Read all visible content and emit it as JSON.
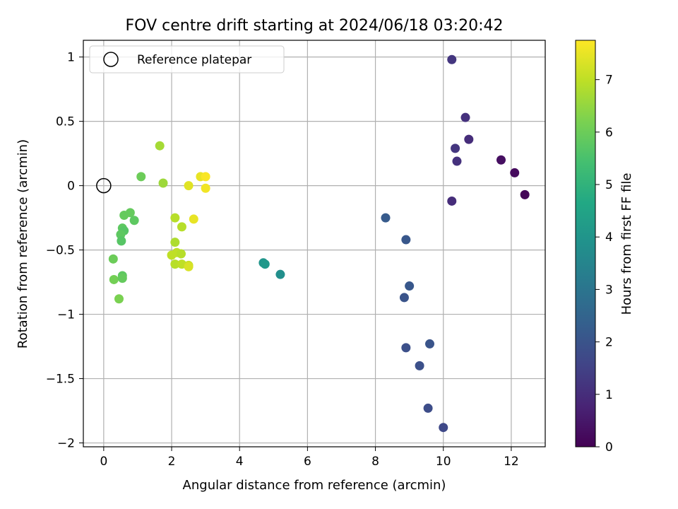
{
  "chart_data": {
    "type": "scatter",
    "title": "FOV centre drift starting at 2024/06/18 03:20:42",
    "xlabel": "Angular distance from reference (arcmin)",
    "ylabel": "Rotation from reference (arcmin)",
    "xlim": [
      -0.6,
      13.0
    ],
    "ylim": [
      -2.03,
      1.13
    ],
    "xticks": [
      0,
      2,
      4,
      6,
      8,
      10,
      12
    ],
    "yticks": [
      1.0,
      0.5,
      0.0,
      -0.5,
      -1.0,
      -1.5,
      -2.0
    ],
    "grid": true,
    "legend": {
      "placement": "top-left",
      "entries": [
        "Reference platepar"
      ]
    },
    "reference_point": {
      "x": 0.0,
      "y": 0.0
    },
    "colorbar": {
      "label": "Hours from first FF file",
      "colormap": "viridis",
      "range": [
        0,
        7.75
      ],
      "ticks": [
        0,
        1,
        2,
        3,
        4,
        5,
        6,
        7
      ]
    },
    "points": [
      {
        "x": 10.25,
        "y": 0.98,
        "c": 1.2
      },
      {
        "x": 10.65,
        "y": 0.53,
        "c": 1.1
      },
      {
        "x": 10.35,
        "y": 0.29,
        "c": 1.2
      },
      {
        "x": 10.75,
        "y": 0.36,
        "c": 1.0
      },
      {
        "x": 10.4,
        "y": 0.19,
        "c": 1.1
      },
      {
        "x": 11.7,
        "y": 0.2,
        "c": 0.3
      },
      {
        "x": 12.1,
        "y": 0.1,
        "c": 0.2
      },
      {
        "x": 12.4,
        "y": -0.07,
        "c": 0.1
      },
      {
        "x": 10.25,
        "y": -0.12,
        "c": 1.0
      },
      {
        "x": 8.3,
        "y": -0.25,
        "c": 2.2
      },
      {
        "x": 8.9,
        "y": -0.42,
        "c": 2.1
      },
      {
        "x": 9.0,
        "y": -0.78,
        "c": 2.1
      },
      {
        "x": 8.85,
        "y": -0.87,
        "c": 2.0
      },
      {
        "x": 8.9,
        "y": -1.26,
        "c": 1.9
      },
      {
        "x": 9.6,
        "y": -1.23,
        "c": 2.0
      },
      {
        "x": 9.3,
        "y": -1.4,
        "c": 1.9
      },
      {
        "x": 9.55,
        "y": -1.73,
        "c": 1.8
      },
      {
        "x": 10.0,
        "y": -1.88,
        "c": 1.7
      },
      {
        "x": 4.7,
        "y": -0.6,
        "c": 4.0
      },
      {
        "x": 4.75,
        "y": -0.61,
        "c": 4.1
      },
      {
        "x": 5.2,
        "y": -0.69,
        "c": 3.8
      },
      {
        "x": 1.65,
        "y": 0.31,
        "c": 6.7
      },
      {
        "x": 1.1,
        "y": 0.07,
        "c": 6.0
      },
      {
        "x": 1.75,
        "y": 0.02,
        "c": 6.6
      },
      {
        "x": 0.6,
        "y": -0.23,
        "c": 5.9
      },
      {
        "x": 0.78,
        "y": -0.21,
        "c": 5.9
      },
      {
        "x": 0.9,
        "y": -0.27,
        "c": 5.8
      },
      {
        "x": 0.55,
        "y": -0.33,
        "c": 5.8
      },
      {
        "x": 0.6,
        "y": -0.35,
        "c": 5.7
      },
      {
        "x": 0.5,
        "y": -0.38,
        "c": 5.8
      },
      {
        "x": 0.52,
        "y": -0.43,
        "c": 5.7
      },
      {
        "x": 0.28,
        "y": -0.57,
        "c": 6.0
      },
      {
        "x": 0.55,
        "y": -0.7,
        "c": 5.8
      },
      {
        "x": 0.3,
        "y": -0.73,
        "c": 6.1
      },
      {
        "x": 0.55,
        "y": -0.72,
        "c": 5.9
      },
      {
        "x": 0.45,
        "y": -0.88,
        "c": 6.2
      },
      {
        "x": 2.1,
        "y": -0.25,
        "c": 6.9
      },
      {
        "x": 2.3,
        "y": -0.32,
        "c": 6.9
      },
      {
        "x": 2.1,
        "y": -0.44,
        "c": 6.8
      },
      {
        "x": 2.0,
        "y": -0.54,
        "c": 7.0
      },
      {
        "x": 2.15,
        "y": -0.52,
        "c": 7.0
      },
      {
        "x": 2.28,
        "y": -0.53,
        "c": 6.9
      },
      {
        "x": 2.1,
        "y": -0.61,
        "c": 6.9
      },
      {
        "x": 2.3,
        "y": -0.61,
        "c": 7.0
      },
      {
        "x": 2.5,
        "y": -0.62,
        "c": 7.1
      },
      {
        "x": 2.5,
        "y": -0.63,
        "c": 7.3
      },
      {
        "x": 2.5,
        "y": 0.0,
        "c": 7.4
      },
      {
        "x": 2.65,
        "y": -0.26,
        "c": 7.5
      },
      {
        "x": 2.85,
        "y": 0.07,
        "c": 7.5
      },
      {
        "x": 3.0,
        "y": 0.07,
        "c": 7.7
      },
      {
        "x": 3.0,
        "y": -0.02,
        "c": 7.6
      }
    ]
  }
}
